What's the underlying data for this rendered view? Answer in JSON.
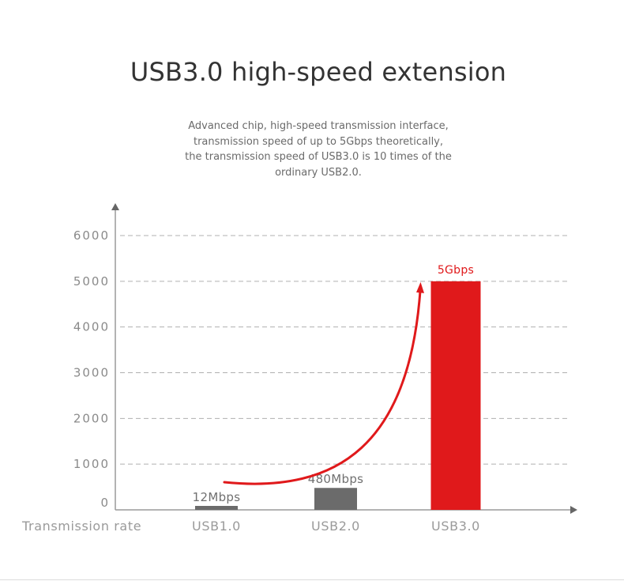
{
  "header": {
    "title": "USB3.0 high-speed extension",
    "subtitle_lines": [
      "Advanced chip, high-speed transmission interface,",
      "transmission speed of up to 5Gbps theoretically,",
      "the transmission speed of USB3.0 is 10 times of the",
      "ordinary USB2.0."
    ]
  },
  "colors": {
    "bar_gray": "#6b6b6b",
    "bar_highlight": "#e0191b",
    "arrow": "#e0191b",
    "axis": "#9a9a9a",
    "grid": "#b0b0b0",
    "tick_text": "#8a8a8a",
    "value_label": "#707070",
    "title": "#333333",
    "subtitle": "#6a6a6a"
  },
  "chart_data": {
    "type": "bar",
    "categories": [
      "USB1.0",
      "USB2.0",
      "USB3.0"
    ],
    "values": [
      12,
      480,
      5000
    ],
    "value_labels": [
      "12Mbps",
      "480Mbps",
      "5Gbps"
    ],
    "highlight_index": 2,
    "xlabel": "Transmission rate",
    "ylabel": "",
    "ylim": [
      0,
      6000
    ],
    "yticks": [
      0,
      1000,
      2000,
      3000,
      4000,
      5000,
      6000
    ],
    "grid": true,
    "annotations": [
      {
        "type": "curved-arrow",
        "from_category": "USB1.0",
        "to_category": "USB3.0",
        "to_value": 5000
      }
    ]
  }
}
